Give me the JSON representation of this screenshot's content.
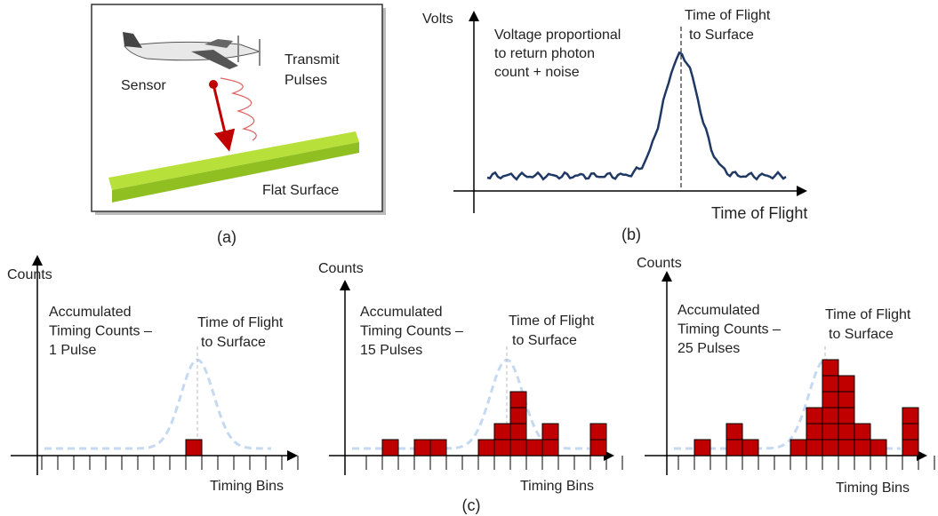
{
  "panel_a": {
    "sensor": "Sensor",
    "transmit": [
      "Transmit",
      "Pulses"
    ],
    "surface": "Flat Surface",
    "caption": "(a)"
  },
  "panel_b": {
    "y_label": "Volts",
    "note": [
      "Voltage proportional",
      "to return  photon",
      "count + noise"
    ],
    "peak_label": [
      "Time of Flight",
      "to Surface"
    ],
    "x_label": "Time of Flight",
    "caption": "(b)"
  },
  "panel_c": {
    "caption": "(c)",
    "histograms": [
      {
        "y_label": "Counts",
        "note": [
          "Accumulated",
          "Timing Counts –",
          "1 Pulse"
        ],
        "peak_label": [
          "Time of Flight",
          "to Surface"
        ],
        "x_label": "Timing Bins",
        "counts": [
          0,
          0,
          0,
          0,
          0,
          0,
          0,
          0,
          0,
          1,
          0,
          0,
          0,
          0,
          0,
          0
        ]
      },
      {
        "y_label": "Counts",
        "note": [
          "Accumulated",
          "Timing Counts –",
          "15 Pulses"
        ],
        "peak_label": [
          "Time of Flight",
          "to Surface"
        ],
        "x_label": "Timing Bins",
        "counts": [
          0,
          1,
          0,
          1,
          1,
          0,
          0,
          1,
          2,
          4,
          1,
          2,
          0,
          0,
          2,
          0
        ]
      },
      {
        "y_label": "Counts",
        "note": [
          "Accumulated",
          "Timing Counts –",
          "25 Pulses"
        ],
        "peak_label": [
          "Time of Flight",
          "to Surface"
        ],
        "x_label": "Timing Bins",
        "counts": [
          0,
          1,
          0,
          2,
          1,
          0,
          0,
          1,
          3,
          6,
          5,
          2,
          1,
          0,
          3,
          0
        ]
      }
    ]
  }
}
